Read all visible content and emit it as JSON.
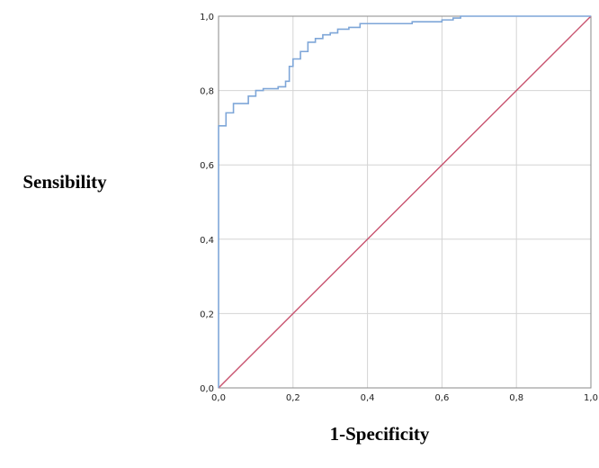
{
  "chart_data": {
    "type": "line",
    "title": "",
    "xlabel": "1-Specificity",
    "ylabel": "Sensibility",
    "xlim": [
      0,
      1
    ],
    "ylim": [
      0,
      1
    ],
    "x_ticks": [
      "0,0",
      "0,2",
      "0,4",
      "0,6",
      "0,8",
      "1,0"
    ],
    "y_ticks": [
      "0,0",
      "0,2",
      "0,4",
      "0,6",
      "0,8",
      "1,0"
    ],
    "grid": true,
    "colors": {
      "roc": "#7ea6d8",
      "reference": "#c8536f"
    },
    "series": [
      {
        "key": "roc",
        "step": true,
        "points": [
          [
            0.0,
            0.0
          ],
          [
            0.0,
            0.705
          ],
          [
            0.02,
            0.705
          ],
          [
            0.02,
            0.74
          ],
          [
            0.04,
            0.74
          ],
          [
            0.04,
            0.765
          ],
          [
            0.08,
            0.765
          ],
          [
            0.08,
            0.785
          ],
          [
            0.1,
            0.785
          ],
          [
            0.1,
            0.8
          ],
          [
            0.12,
            0.8
          ],
          [
            0.12,
            0.805
          ],
          [
            0.16,
            0.805
          ],
          [
            0.16,
            0.81
          ],
          [
            0.18,
            0.81
          ],
          [
            0.18,
            0.825
          ],
          [
            0.19,
            0.825
          ],
          [
            0.19,
            0.865
          ],
          [
            0.2,
            0.865
          ],
          [
            0.2,
            0.885
          ],
          [
            0.22,
            0.885
          ],
          [
            0.22,
            0.905
          ],
          [
            0.24,
            0.905
          ],
          [
            0.24,
            0.93
          ],
          [
            0.26,
            0.93
          ],
          [
            0.26,
            0.94
          ],
          [
            0.28,
            0.94
          ],
          [
            0.28,
            0.95
          ],
          [
            0.3,
            0.95
          ],
          [
            0.3,
            0.955
          ],
          [
            0.32,
            0.955
          ],
          [
            0.32,
            0.965
          ],
          [
            0.35,
            0.965
          ],
          [
            0.35,
            0.97
          ],
          [
            0.38,
            0.97
          ],
          [
            0.38,
            0.98
          ],
          [
            0.52,
            0.98
          ],
          [
            0.52,
            0.985
          ],
          [
            0.6,
            0.985
          ],
          [
            0.6,
            0.99
          ],
          [
            0.63,
            0.99
          ],
          [
            0.63,
            0.995
          ],
          [
            0.65,
            0.995
          ],
          [
            0.65,
            1.0
          ],
          [
            1.0,
            1.0
          ]
        ]
      },
      {
        "key": "reference",
        "step": false,
        "points": [
          [
            0,
            0
          ],
          [
            1,
            1
          ]
        ]
      }
    ]
  }
}
